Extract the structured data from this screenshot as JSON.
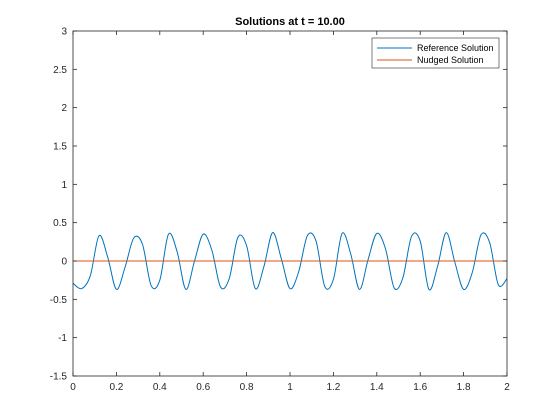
{
  "chart_data": {
    "type": "line",
    "title": "Solutions at t = 10.00",
    "xlabel": "",
    "ylabel": "",
    "xlim": [
      0,
      2
    ],
    "ylim": [
      -1.5,
      3
    ],
    "xticks": [
      "0",
      "0.2",
      "0.4",
      "0.6",
      "0.8",
      "1",
      "1.2",
      "1.4",
      "1.6",
      "1.8",
      "2"
    ],
    "yticks": [
      "-1.5",
      "-1",
      "-0.5",
      "0",
      "0.5",
      "1",
      "1.5",
      "2",
      "2.5",
      "3"
    ],
    "grid": false,
    "legend_position": "top-right",
    "series": [
      {
        "name": "Reference Solution",
        "color": "#0072BD",
        "x": [
          0,
          0.04,
          0.08,
          0.12,
          0.16,
          0.2,
          0.24,
          0.28,
          0.32,
          0.36,
          0.4,
          0.44,
          0.48,
          0.52,
          0.56,
          0.6,
          0.64,
          0.68,
          0.72,
          0.76,
          0.8,
          0.84,
          0.88,
          0.92,
          0.96,
          1.0,
          1.04,
          1.08,
          1.12,
          1.16,
          1.2,
          1.24,
          1.28,
          1.32,
          1.36,
          1.4,
          1.44,
          1.48,
          1.52,
          1.56,
          1.6,
          1.64,
          1.68,
          1.72,
          1.76,
          1.8,
          1.84,
          1.88,
          1.92,
          1.96,
          2.0
        ],
        "y": [
          -0.29,
          -0.36,
          -0.19,
          0.33,
          0.05,
          -0.37,
          -0.08,
          0.3,
          0.22,
          -0.32,
          -0.25,
          0.35,
          0.12,
          -0.37,
          0.0,
          0.35,
          0.14,
          -0.34,
          -0.23,
          0.31,
          0.2,
          -0.36,
          -0.07,
          0.37,
          0.03,
          -0.36,
          -0.14,
          0.33,
          0.26,
          -0.33,
          -0.24,
          0.36,
          0.09,
          -0.37,
          0.02,
          0.36,
          0.16,
          -0.35,
          -0.22,
          0.32,
          0.26,
          -0.37,
          -0.07,
          0.37,
          -0.02,
          -0.37,
          -0.15,
          0.34,
          0.24,
          -0.31,
          -0.23
        ]
      },
      {
        "name": "Nudged Solution",
        "color": "#D95319",
        "x": [
          0,
          2
        ],
        "y": [
          0,
          0
        ]
      }
    ]
  }
}
